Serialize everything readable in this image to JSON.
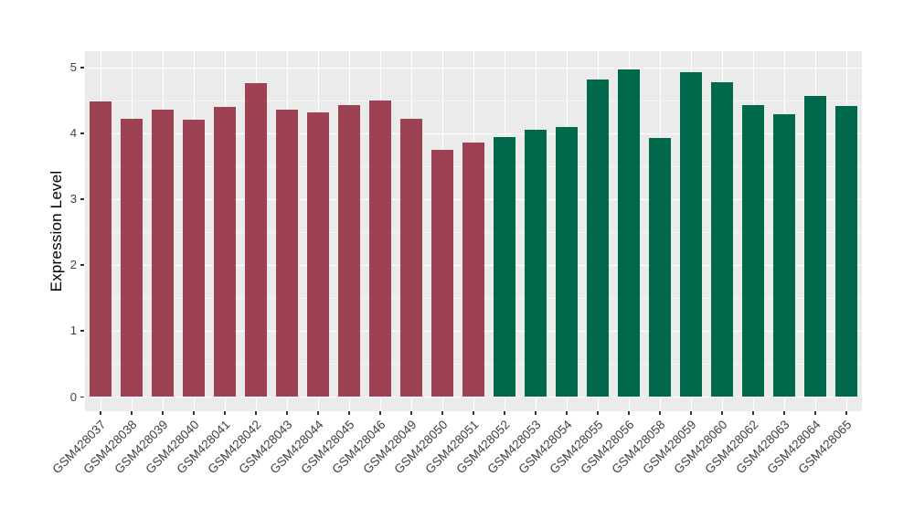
{
  "chart_data": {
    "type": "bar",
    "title": "",
    "xlabel": "",
    "ylabel": "Expression Level",
    "ylim": [
      0,
      5.25
    ],
    "yticks": [
      0,
      1,
      2,
      3,
      4,
      5
    ],
    "y_minor_ticks": [
      0.5,
      1.5,
      2.5,
      3.5,
      4.5
    ],
    "grid": "white major+minor horizontal lines and vertical category lines on gray panel",
    "legend_position": "none",
    "panel_bg": "#EBEBEB",
    "gridline_color": "#FFFFFF",
    "tick_text_color": "#404040",
    "axis_title_color": "#000000",
    "palette": {
      "maroon": "#9C4252",
      "green": "#00684B"
    },
    "categories": [
      "GSM428037",
      "GSM428038",
      "GSM428039",
      "GSM428040",
      "GSM428041",
      "GSM428042",
      "GSM428043",
      "GSM428044",
      "GSM428045",
      "GSM428046",
      "GSM428049",
      "GSM428050",
      "GSM428051",
      "GSM428052",
      "GSM428053",
      "GSM428054",
      "GSM428055",
      "GSM428056",
      "GSM428058",
      "GSM428059",
      "GSM428060",
      "GSM428062",
      "GSM428063",
      "GSM428064",
      "GSM428065"
    ],
    "values": [
      4.48,
      4.21,
      4.36,
      4.2,
      4.39,
      4.76,
      4.36,
      4.31,
      4.42,
      4.5,
      4.22,
      3.74,
      3.85,
      3.94,
      4.05,
      4.09,
      4.81,
      4.97,
      3.92,
      4.93,
      4.77,
      4.43,
      4.28,
      4.57,
      4.41
    ],
    "groups": [
      "maroon",
      "maroon",
      "maroon",
      "maroon",
      "maroon",
      "maroon",
      "maroon",
      "maroon",
      "maroon",
      "maroon",
      "maroon",
      "maroon",
      "maroon",
      "green",
      "green",
      "green",
      "green",
      "green",
      "green",
      "green",
      "green",
      "green",
      "green",
      "green",
      "green"
    ]
  }
}
